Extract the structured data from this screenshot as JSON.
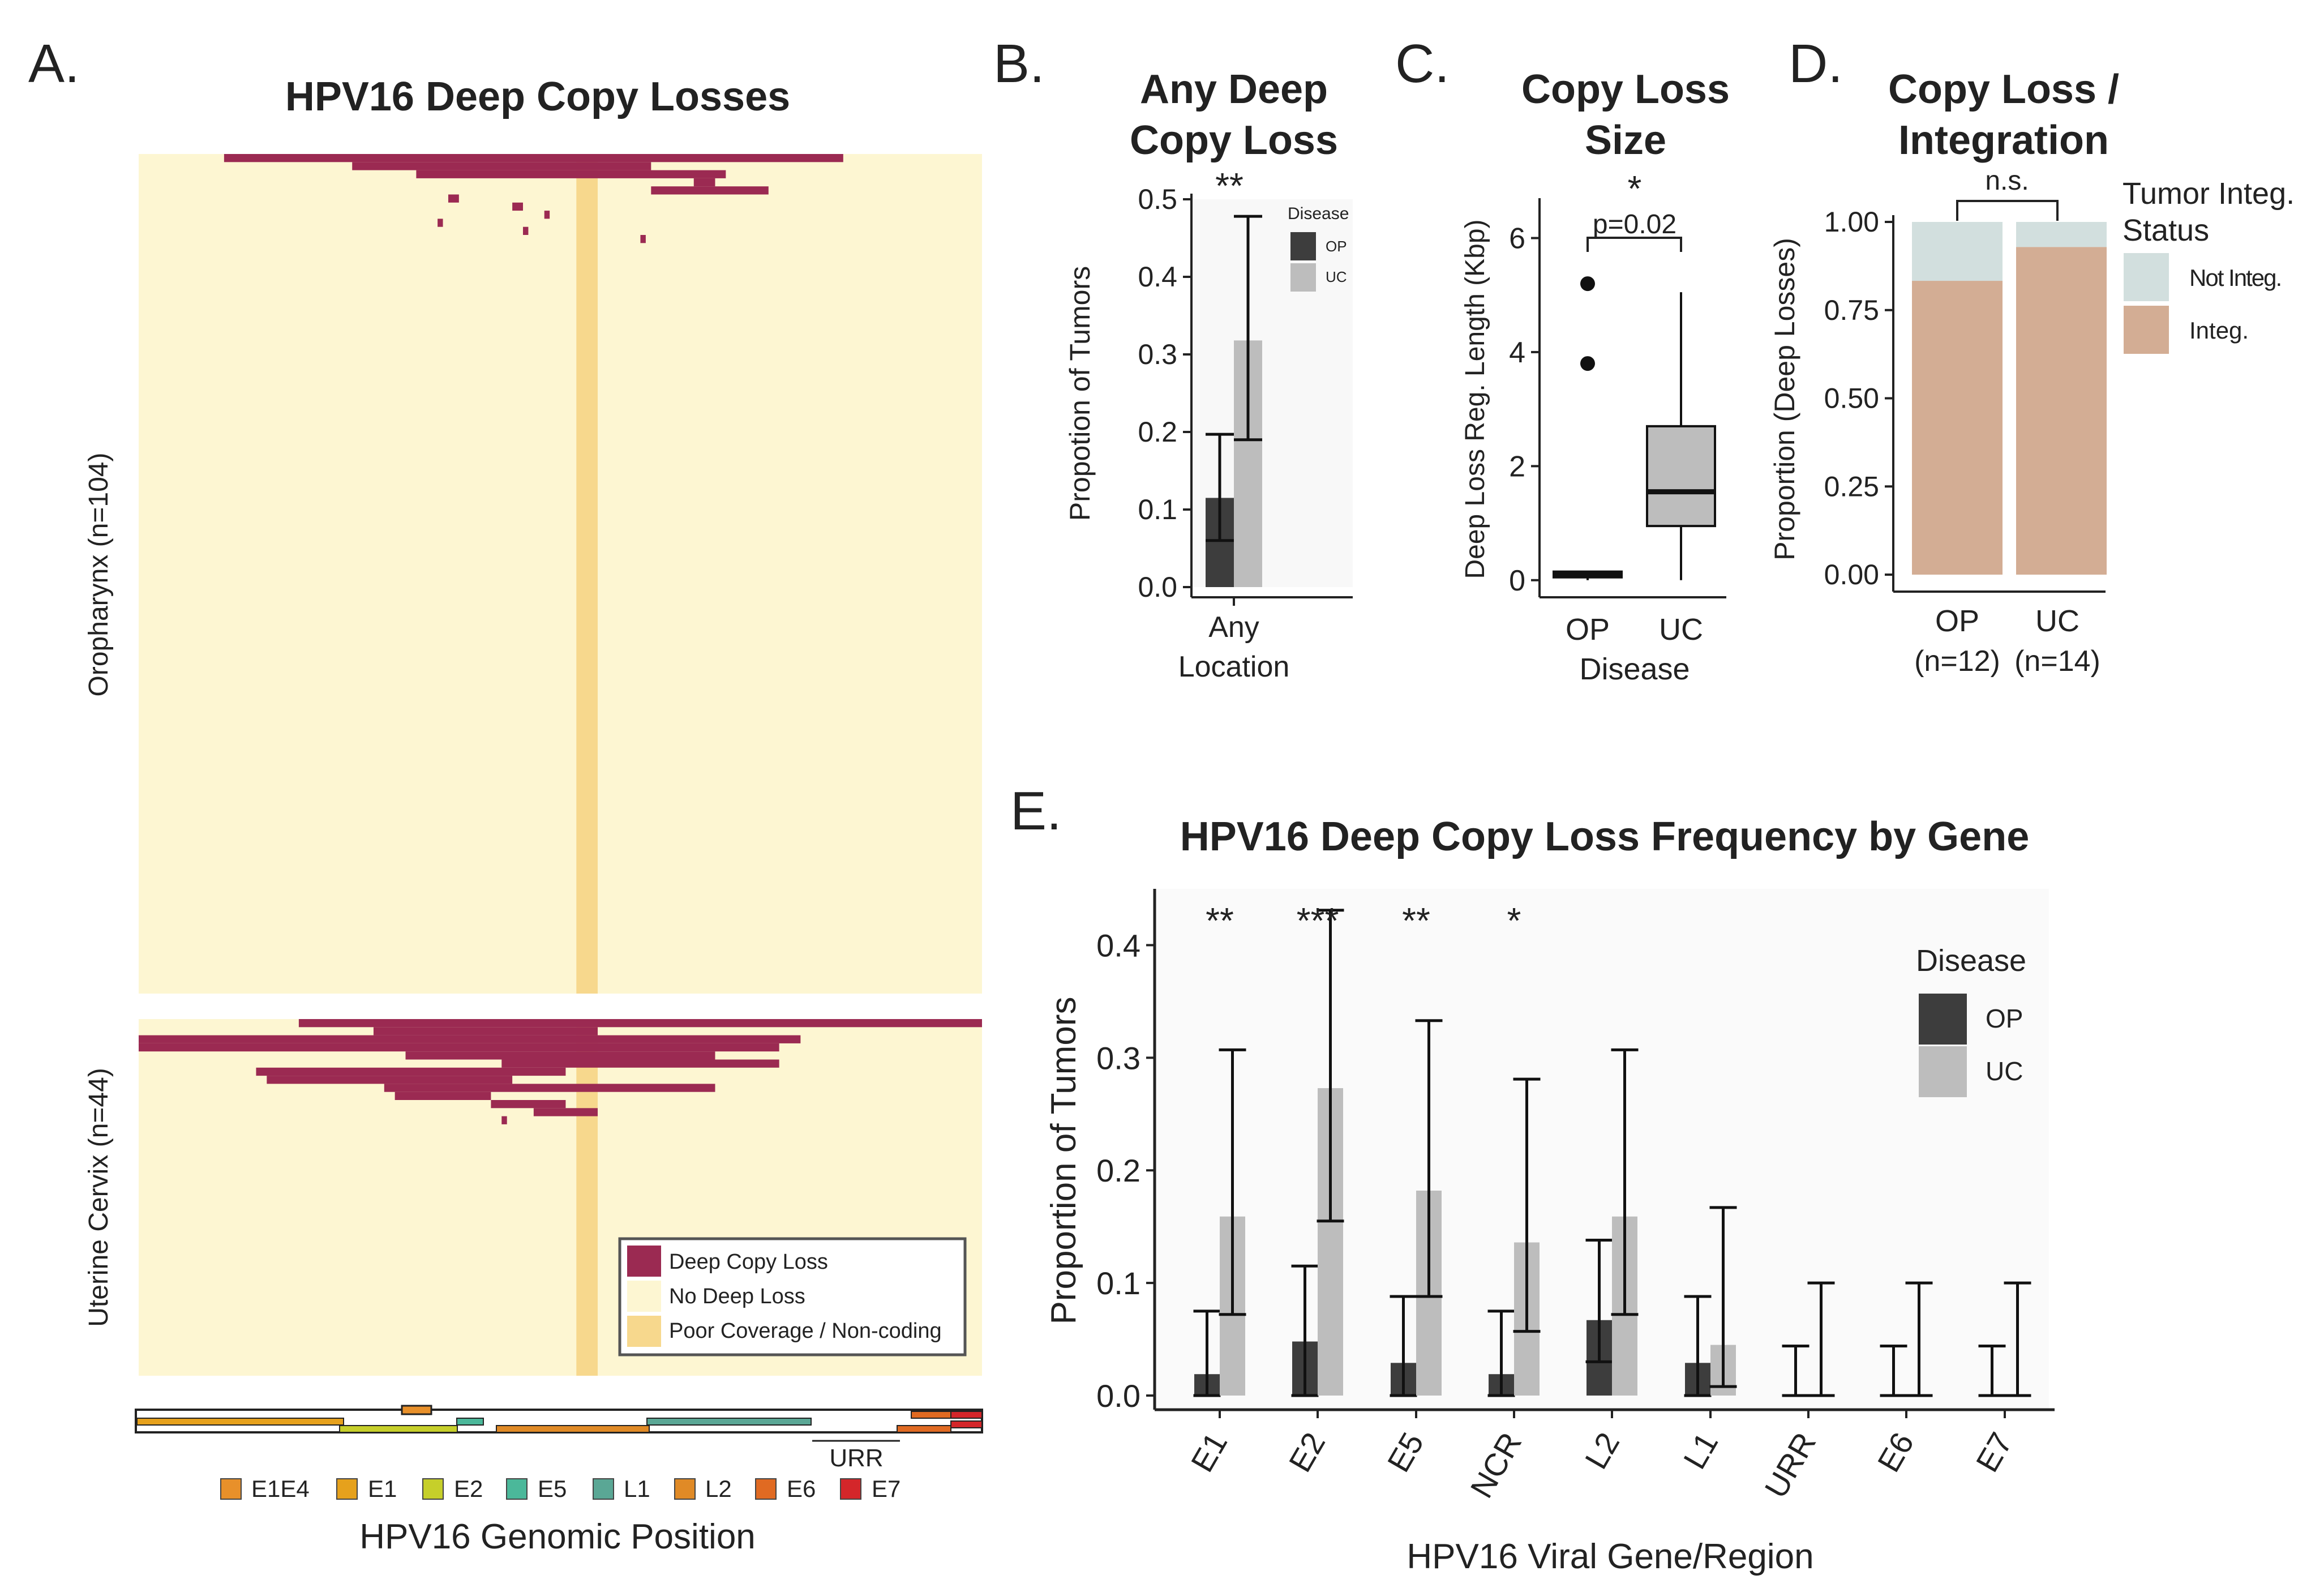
{
  "panel_letters": [
    "A.",
    "B.",
    "C.",
    "D.",
    "E."
  ],
  "chart_data": [
    {
      "panel": "A.",
      "type": "heatmap",
      "title": "HPV16 Deep Copy Losses",
      "groups": [
        {
          "name": "Oropharynx (n=104)",
          "deep_loss_rows": [
            {
              "start_kb": 0.8,
              "end_kb": 6.6
            },
            {
              "start_kb": 2.0,
              "end_kb": 4.8
            },
            {
              "start_kb": 2.6,
              "end_kb": 5.5
            },
            {
              "start_kb": 5.2,
              "end_kb": 5.4
            },
            {
              "start_kb": 4.8,
              "end_kb": 5.9
            },
            {
              "start_kb": 2.9,
              "end_kb": 3.0
            },
            {
              "start_kb": 3.5,
              "end_kb": 3.6
            },
            {
              "start_kb": 3.8,
              "end_kb": 3.85
            },
            {
              "start_kb": 2.8,
              "end_kb": 2.85
            },
            {
              "start_kb": 3.6,
              "end_kb": 3.65
            },
            {
              "start_kb": 4.7,
              "end_kb": 4.75
            }
          ]
        },
        {
          "name": "Uterine Cervix (n=44)",
          "deep_loss_rows": [
            {
              "start_kb": 1.5,
              "end_kb": 7.9
            },
            {
              "start_kb": 2.2,
              "end_kb": 4.3
            },
            {
              "start_kb": 0.0,
              "end_kb": 6.2
            },
            {
              "start_kb": 0.0,
              "end_kb": 6.0
            },
            {
              "start_kb": 2.5,
              "end_kb": 5.4
            },
            {
              "start_kb": 3.4,
              "end_kb": 6.0
            },
            {
              "start_kb": 1.1,
              "end_kb": 4.0
            },
            {
              "start_kb": 1.2,
              "end_kb": 3.5
            },
            {
              "start_kb": 2.3,
              "end_kb": 5.4
            },
            {
              "start_kb": 2.4,
              "end_kb": 3.3
            },
            {
              "start_kb": 3.3,
              "end_kb": 4.0
            },
            {
              "start_kb": 3.7,
              "end_kb": 4.3
            },
            {
              "start_kb": 3.4,
              "end_kb": 3.45
            }
          ]
        }
      ],
      "poor_coverage_region_kb": [
        4.1,
        4.3
      ],
      "x_range_kb": [
        0,
        7.9
      ],
      "legend": [
        "Deep Copy Loss",
        "No Deep Loss",
        "Poor Coverage / Non-coding"
      ],
      "gene_legend": [
        "E1E4",
        "E1",
        "E2",
        "E5",
        "L1",
        "L2",
        "E6",
        "E7"
      ],
      "gene_colors": {
        "E1E4": "#e8902a",
        "E1": "#e6a11c",
        "E2": "#c6cf2a",
        "E5": "#4bb89a",
        "L1": "#5aa795",
        "L2": "#e08a26",
        "E6": "#e06a22",
        "E7": "#d4262a"
      },
      "genome_map_label": "URR",
      "xlabel": "HPV16 Genomic Position"
    },
    {
      "panel": "B.",
      "type": "bar",
      "title": "Any Deep Copy Loss",
      "categories": [
        "Any Location"
      ],
      "series": [
        {
          "name": "OP",
          "values": [
            0.115
          ],
          "ci_low": [
            0.06
          ],
          "ci_high": [
            0.197
          ]
        },
        {
          "name": "UC",
          "values": [
            0.318
          ],
          "ci_low": [
            0.19
          ],
          "ci_high": [
            0.478
          ]
        }
      ],
      "ylabel": "Propotion of Tumors",
      "ylim": [
        0,
        0.5
      ],
      "yticks": [
        "0.0",
        "0.1",
        "0.2",
        "0.3",
        "0.4",
        "0.5"
      ],
      "significance": "**",
      "legend_title": "Disease"
    },
    {
      "panel": "C.",
      "type": "box",
      "title": "Copy Loss Size",
      "categories": [
        "OP",
        "UC"
      ],
      "boxes": [
        {
          "name": "OP",
          "q1": 0.05,
          "median": 0.1,
          "q3": 0.15,
          "whisker_low": 0.0,
          "whisker_high": 0.15,
          "outliers": [
            3.8,
            5.2
          ]
        },
        {
          "name": "UC",
          "q1": 0.95,
          "median": 1.55,
          "q3": 2.7,
          "whisker_low": 0.0,
          "whisker_high": 5.05,
          "outliers": []
        }
      ],
      "xlabel": "Disease",
      "ylabel": "Deep Loss Reg. Length (Kbp)",
      "ylim": [
        -0.3,
        6.7
      ],
      "yticks": [
        "0",
        "2",
        "4",
        "6"
      ],
      "significance": "*",
      "p_value": "p=0.02"
    },
    {
      "panel": "D.",
      "type": "bar",
      "stacked": true,
      "title": "Copy Loss / Integration",
      "categories": [
        "OP",
        "UC"
      ],
      "category_counts": [
        "(n=12)",
        "(n=14)"
      ],
      "series": [
        {
          "name": "Integ.",
          "values": [
            0.833,
            0.929
          ]
        },
        {
          "name": "Not Integ.",
          "values": [
            0.167,
            0.071
          ]
        }
      ],
      "ylabel": "Proportion (Deep Losses)",
      "ylim": [
        0,
        1
      ],
      "yticks": [
        "0.00",
        "0.25",
        "0.50",
        "0.75",
        "1.00"
      ],
      "significance": "n.s.",
      "legend_title": "Tumor Integ. Status"
    },
    {
      "panel": "E.",
      "type": "bar",
      "title": "HPV16 Deep Copy Loss Frequency by Gene",
      "categories": [
        "E1",
        "E2",
        "E5",
        "NCR",
        "L2",
        "L1",
        "URR",
        "E6",
        "E7"
      ],
      "series": [
        {
          "name": "OP",
          "values": [
            0.019,
            0.048,
            0.029,
            0.019,
            0.067,
            0.029,
            0.0,
            0.0,
            0.0
          ],
          "ci_low": [
            0.0,
            0.0,
            0.0,
            0.0,
            0.03,
            0.0,
            0.0,
            0.0,
            0.0
          ],
          "ci_high": [
            0.075,
            0.115,
            0.088,
            0.075,
            0.138,
            0.088,
            0.044,
            0.044,
            0.044
          ]
        },
        {
          "name": "UC",
          "values": [
            0.159,
            0.273,
            0.182,
            0.136,
            0.159,
            0.045,
            0.0,
            0.0,
            0.0
          ],
          "ci_low": [
            0.072,
            0.155,
            0.088,
            0.057,
            0.072,
            0.008,
            0.0,
            0.0,
            0.0
          ],
          "ci_high": [
            0.307,
            0.431,
            0.333,
            0.281,
            0.307,
            0.167,
            0.1,
            0.1,
            0.1
          ]
        }
      ],
      "significance": [
        "**",
        "***",
        "**",
        "*",
        "",
        "",
        "",
        "",
        ""
      ],
      "xlabel": "HPV16 Viral Gene/Region",
      "ylabel": "Proportion of Tumors",
      "ylim": [
        0,
        0.45
      ],
      "yticks": [
        "0.0",
        "0.1",
        "0.2",
        "0.3",
        "0.4"
      ],
      "legend_title": "Disease"
    }
  ],
  "colors": {
    "deep_loss": "#9b2a52",
    "no_loss": "#fdf6d2",
    "poor_coverage": "#f7d88d",
    "op": "#3d3d3d",
    "uc": "#bdbdbd",
    "integ": "#d3ad94",
    "not_integ": "#d2dfde",
    "panel_bg": "#ebebeb"
  }
}
